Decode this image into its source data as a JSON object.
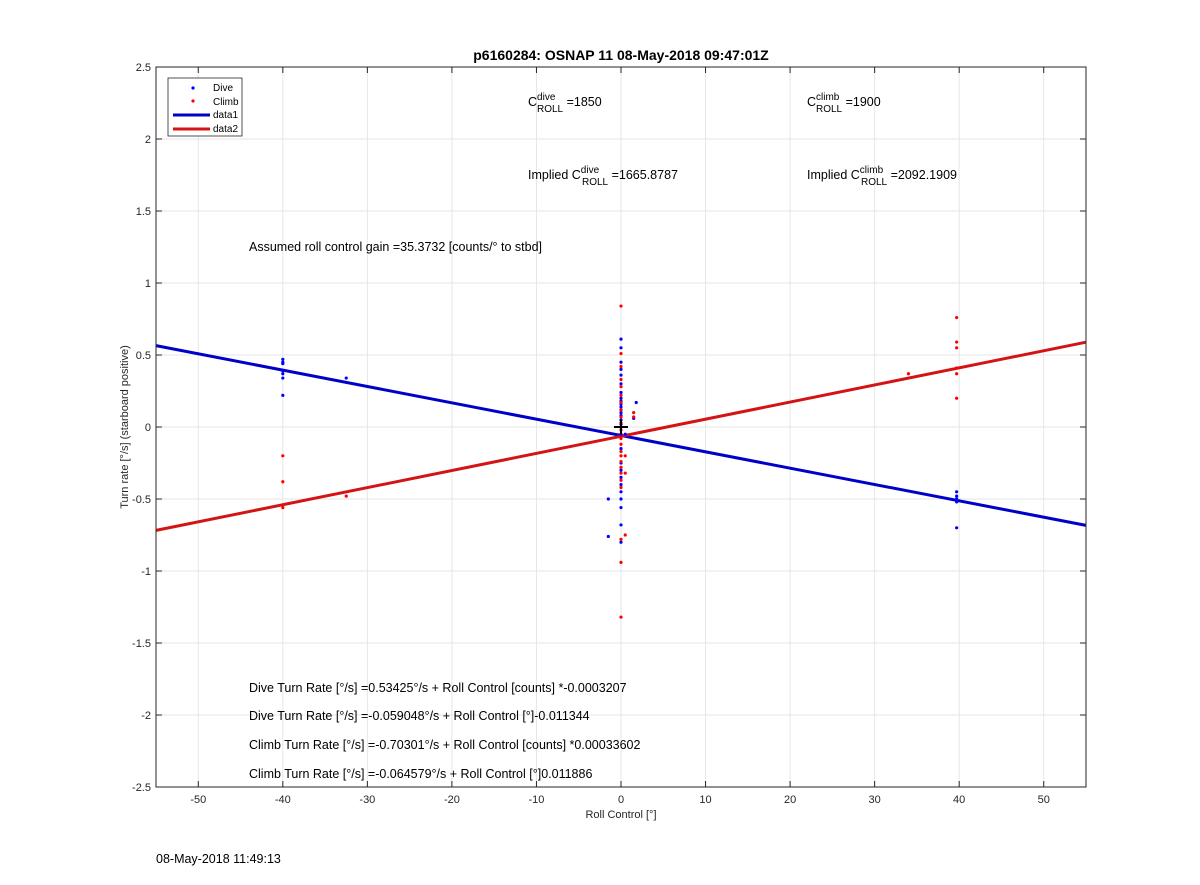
{
  "chart_data": {
    "type": "scatter",
    "title": "p6160284: OSNAP 11 08-May-2018 09:47:01Z",
    "xlabel": "Roll Control [°]",
    "ylabel": "Turn rate [°/s] (starboard positive)",
    "xlim": [
      -55,
      55
    ],
    "ylim": [
      -2.5,
      2.5
    ],
    "xticks": [
      -50,
      -40,
      -30,
      -20,
      -10,
      0,
      10,
      20,
      30,
      40,
      50
    ],
    "yticks": [
      -2.5,
      -2,
      -1.5,
      -1,
      -0.5,
      0,
      0.5,
      1,
      1.5,
      2,
      2.5
    ],
    "grid": true,
    "legend_position": "top-left",
    "legend": [
      {
        "label": "Dive",
        "kind": "marker",
        "color": "#0000ff"
      },
      {
        "label": "Climb",
        "kind": "marker",
        "color": "#ff0000"
      },
      {
        "label": "data1",
        "kind": "line",
        "color": "#0000c8"
      },
      {
        "label": "data2",
        "kind": "line",
        "color": "#d41414"
      }
    ],
    "series": [
      {
        "name": "Dive",
        "kind": "scatter",
        "color": "#0000ff",
        "points": [
          [
            -40,
            0.47
          ],
          [
            -40,
            0.45
          ],
          [
            -40,
            0.44
          ],
          [
            -40,
            0.39
          ],
          [
            -40,
            0.37
          ],
          [
            -40,
            0.34
          ],
          [
            -40,
            0.22
          ],
          [
            -32.5,
            0.34
          ],
          [
            0,
            0.61
          ],
          [
            0,
            0.55
          ],
          [
            0,
            0.45
          ],
          [
            0,
            0.4
          ],
          [
            0,
            0.36
          ],
          [
            0,
            0.3
          ],
          [
            0,
            0.24
          ],
          [
            0,
            0.2
          ],
          [
            0,
            0.18
          ],
          [
            0,
            0.16
          ],
          [
            0,
            0.14
          ],
          [
            0,
            0.12
          ],
          [
            0,
            0.1
          ],
          [
            0,
            0.08
          ],
          [
            0,
            0.05
          ],
          [
            0,
            0.02
          ],
          [
            0,
            -0.05
          ],
          [
            0,
            -0.15
          ],
          [
            0,
            -0.25
          ],
          [
            0,
            -0.3
          ],
          [
            0,
            -0.35
          ],
          [
            0,
            -0.4
          ],
          [
            0,
            -0.45
          ],
          [
            0,
            -0.5
          ],
          [
            0,
            -0.56
          ],
          [
            0,
            -0.68
          ],
          [
            0,
            -0.8
          ],
          [
            -1.5,
            -0.5
          ],
          [
            -1.5,
            -0.76
          ],
          [
            1.8,
            0.17
          ],
          [
            1.5,
            0.06
          ],
          [
            0.5,
            -0.05
          ],
          [
            39.7,
            -0.45
          ],
          [
            39.7,
            -0.48
          ],
          [
            39.7,
            -0.5
          ],
          [
            39.7,
            -0.52
          ],
          [
            39.7,
            -0.7
          ]
        ]
      },
      {
        "name": "Climb",
        "kind": "scatter",
        "color": "#ff0000",
        "points": [
          [
            -40,
            -0.2
          ],
          [
            -40,
            -0.38
          ],
          [
            -40,
            -0.56
          ],
          [
            -32.5,
            -0.48
          ],
          [
            0,
            0.84
          ],
          [
            0,
            0.51
          ],
          [
            0,
            0.42
          ],
          [
            0,
            0.33
          ],
          [
            0,
            0.28
          ],
          [
            0,
            0.22
          ],
          [
            0,
            0.17
          ],
          [
            0,
            0.12
          ],
          [
            0,
            0.07
          ],
          [
            0,
            0.03
          ],
          [
            0,
            -0.02
          ],
          [
            0,
            -0.08
          ],
          [
            0,
            -0.12
          ],
          [
            0,
            -0.17
          ],
          [
            0,
            -0.2
          ],
          [
            0,
            -0.24
          ],
          [
            0,
            -0.28
          ],
          [
            0,
            -0.32
          ],
          [
            0,
            -0.37
          ],
          [
            0,
            -0.42
          ],
          [
            0,
            -0.78
          ],
          [
            0,
            -0.94
          ],
          [
            0,
            -1.32
          ],
          [
            0.5,
            -0.2
          ],
          [
            0.5,
            -0.32
          ],
          [
            0.5,
            -0.75
          ],
          [
            1.5,
            0.1
          ],
          [
            1.5,
            0.07
          ],
          [
            34,
            0.37
          ],
          [
            39.7,
            0.76
          ],
          [
            39.7,
            0.59
          ],
          [
            39.7,
            0.55
          ],
          [
            39.7,
            0.41
          ],
          [
            39.7,
            0.37
          ],
          [
            39.7,
            0.2
          ]
        ]
      },
      {
        "name": "data1",
        "kind": "line",
        "color": "#0000c8",
        "x": [
          -55,
          55
        ],
        "y": [
          0.565,
          -0.683
        ]
      },
      {
        "name": "data2",
        "kind": "line",
        "color": "#d41414",
        "x": [
          -55,
          55
        ],
        "y": [
          -0.718,
          0.589
        ]
      }
    ],
    "marker": {
      "x": 0,
      "y": 0,
      "symbol": "+",
      "color": "#000000"
    }
  },
  "annotations": {
    "c_dive": {
      "prefix": "C",
      "sup": "dive",
      "sub": "ROLL",
      "value": " =1850"
    },
    "c_climb": {
      "prefix": "C",
      "sup": "climb",
      "sub": "ROLL",
      "value": " =1900"
    },
    "implied_dive": {
      "prefix": "Implied C",
      "sup": "dive",
      "sub": "ROLL",
      "value": " =1665.8787"
    },
    "implied_climb": {
      "prefix": "Implied C",
      "sup": "climb",
      "sub": "ROLL",
      "value": " =2092.1909"
    },
    "gain": "Assumed roll control gain =35.3732 [counts/° to stbd]",
    "eq1": "Dive Turn Rate [°/s] =0.53425°/s + Roll Control [counts] *-0.0003207",
    "eq2": "Dive Turn Rate [°/s] =-0.059048°/s + Roll Control [°]-0.011344",
    "eq3": "Climb Turn Rate [°/s] =-0.70301°/s + Roll Control [counts] *0.00033602",
    "eq4": "Climb Turn Rate [°/s] =-0.064579°/s + Roll Control [°]0.011886"
  },
  "footer": {
    "timestamp": "08-May-2018 11:49:13"
  }
}
